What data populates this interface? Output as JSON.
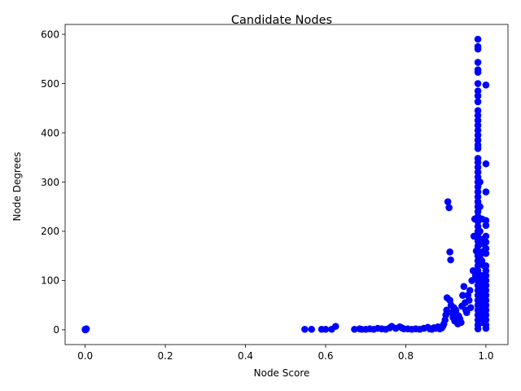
{
  "chart_data": {
    "type": "scatter",
    "title": "Candidate Nodes",
    "xlabel": "Node Score",
    "ylabel": "Node Degrees",
    "xlim": [
      -0.05,
      1.055
    ],
    "ylim": [
      -30,
      620
    ],
    "xticks": [
      0.0,
      0.2,
      0.4,
      0.6,
      0.8,
      1.0
    ],
    "xtick_labels": [
      "0.0",
      "0.2",
      "0.4",
      "0.6",
      "0.8",
      "1.0"
    ],
    "yticks": [
      0,
      100,
      200,
      300,
      400,
      500,
      600
    ],
    "ytick_labels": [
      "0",
      "100",
      "200",
      "300",
      "400",
      "500",
      "600"
    ],
    "grid": false,
    "legend": "none",
    "marker_color": "#0000ff",
    "series": [
      {
        "points": [
          [
            0.0,
            0
          ],
          [
            0.002,
            1
          ],
          [
            0.003,
            2
          ],
          [
            0.001,
            0
          ],
          [
            0.0,
            1
          ],
          [
            0.548,
            1
          ],
          [
            0.565,
            1
          ],
          [
            0.59,
            1
          ],
          [
            0.6,
            1
          ],
          [
            0.615,
            1
          ],
          [
            0.625,
            7
          ],
          [
            0.672,
            1
          ],
          [
            0.685,
            2
          ],
          [
            0.69,
            1
          ],
          [
            0.7,
            1
          ],
          [
            0.71,
            2
          ],
          [
            0.72,
            1
          ],
          [
            0.73,
            3
          ],
          [
            0.74,
            2
          ],
          [
            0.75,
            1
          ],
          [
            0.76,
            4
          ],
          [
            0.765,
            7
          ],
          [
            0.775,
            3
          ],
          [
            0.785,
            6
          ],
          [
            0.79,
            4
          ],
          [
            0.795,
            2
          ],
          [
            0.805,
            2
          ],
          [
            0.815,
            1
          ],
          [
            0.825,
            2
          ],
          [
            0.835,
            1
          ],
          [
            0.845,
            3
          ],
          [
            0.855,
            5
          ],
          [
            0.86,
            2
          ],
          [
            0.865,
            1
          ],
          [
            0.87,
            4
          ],
          [
            0.875,
            3
          ],
          [
            0.88,
            6
          ],
          [
            0.885,
            2
          ],
          [
            0.89,
            4
          ],
          [
            0.893,
            8
          ],
          [
            0.895,
            12
          ],
          [
            0.898,
            20
          ],
          [
            0.9,
            30
          ],
          [
            0.902,
            40
          ],
          [
            0.903,
            65
          ],
          [
            0.905,
            260
          ],
          [
            0.908,
            248
          ],
          [
            0.91,
            158
          ],
          [
            0.912,
            142
          ],
          [
            0.91,
            60
          ],
          [
            0.913,
            50
          ],
          [
            0.915,
            35
          ],
          [
            0.918,
            25
          ],
          [
            0.92,
            45
          ],
          [
            0.922,
            18
          ],
          [
            0.925,
            40
          ],
          [
            0.928,
            30
          ],
          [
            0.93,
            12
          ],
          [
            0.932,
            28
          ],
          [
            0.935,
            22
          ],
          [
            0.938,
            15
          ],
          [
            0.94,
            48
          ],
          [
            0.942,
            70
          ],
          [
            0.945,
            88
          ],
          [
            0.948,
            55
          ],
          [
            0.95,
            40
          ],
          [
            0.952,
            35
          ],
          [
            0.955,
            70
          ],
          [
            0.958,
            60
          ],
          [
            0.96,
            80
          ],
          [
            0.962,
            45
          ],
          [
            0.965,
            100
          ],
          [
            0.968,
            120
          ],
          [
            0.97,
            190
          ],
          [
            0.972,
            225
          ],
          [
            0.974,
            110
          ],
          [
            0.976,
            160
          ],
          [
            0.98,
            590
          ],
          [
            0.98,
            575
          ],
          [
            0.98,
            570
          ],
          [
            0.98,
            543
          ],
          [
            0.98,
            528
          ],
          [
            0.98,
            523
          ],
          [
            0.98,
            500
          ],
          [
            0.98,
            485
          ],
          [
            0.98,
            475
          ],
          [
            0.98,
            463
          ],
          [
            0.98,
            445
          ],
          [
            0.98,
            435
          ],
          [
            0.98,
            425
          ],
          [
            0.98,
            415
          ],
          [
            0.98,
            405
          ],
          [
            0.98,
            395
          ],
          [
            0.98,
            385
          ],
          [
            0.98,
            375
          ],
          [
            0.98,
            368
          ],
          [
            0.98,
            348
          ],
          [
            0.98,
            340
          ],
          [
            0.98,
            330
          ],
          [
            0.98,
            320
          ],
          [
            0.98,
            310
          ],
          [
            0.98,
            300
          ],
          [
            0.98,
            290
          ],
          [
            0.98,
            280
          ],
          [
            0.98,
            270
          ],
          [
            0.98,
            260
          ],
          [
            0.98,
            250
          ],
          [
            0.98,
            240
          ],
          [
            0.98,
            230
          ],
          [
            0.98,
            220
          ],
          [
            0.98,
            210
          ],
          [
            0.98,
            200
          ],
          [
            0.98,
            190
          ],
          [
            0.98,
            180
          ],
          [
            0.98,
            170
          ],
          [
            0.98,
            160
          ],
          [
            0.98,
            150
          ],
          [
            0.98,
            140
          ],
          [
            0.98,
            130
          ],
          [
            0.98,
            120
          ],
          [
            0.98,
            110
          ],
          [
            0.98,
            100
          ],
          [
            0.98,
            90
          ],
          [
            0.98,
            80
          ],
          [
            0.98,
            70
          ],
          [
            0.98,
            60
          ],
          [
            0.98,
            50
          ],
          [
            0.98,
            40
          ],
          [
            0.98,
            30
          ],
          [
            0.98,
            20
          ],
          [
            0.98,
            10
          ],
          [
            0.98,
            2
          ],
          [
            0.985,
            300
          ],
          [
            0.985,
            250
          ],
          [
            0.985,
            200
          ],
          [
            0.985,
            150
          ],
          [
            0.985,
            100
          ],
          [
            0.985,
            60
          ],
          [
            0.985,
            30
          ],
          [
            0.99,
            225
          ],
          [
            0.99,
            175
          ],
          [
            0.99,
            140
          ],
          [
            0.99,
            110
          ],
          [
            0.99,
            90
          ],
          [
            0.99,
            70
          ],
          [
            0.99,
            50
          ],
          [
            0.99,
            30
          ],
          [
            0.99,
            15
          ],
          [
            0.995,
            185
          ],
          [
            0.995,
            160
          ],
          [
            0.995,
            130
          ],
          [
            0.995,
            100
          ],
          [
            0.995,
            80
          ],
          [
            0.995,
            60
          ],
          [
            0.995,
            40
          ],
          [
            0.995,
            20
          ],
          [
            1.0,
            497
          ],
          [
            1.0,
            337
          ],
          [
            1.0,
            280
          ],
          [
            1.0,
            222
          ],
          [
            1.0,
            212
          ],
          [
            1.0,
            190
          ],
          [
            1.0,
            178
          ],
          [
            1.0,
            165
          ],
          [
            1.0,
            155
          ],
          [
            1.0,
            130
          ],
          [
            1.0,
            120
          ],
          [
            1.0,
            110
          ],
          [
            1.0,
            100
          ],
          [
            1.0,
            90
          ],
          [
            1.0,
            80
          ],
          [
            1.0,
            70
          ],
          [
            1.0,
            60
          ],
          [
            1.0,
            50
          ],
          [
            1.0,
            40
          ],
          [
            1.0,
            30
          ],
          [
            1.0,
            20
          ],
          [
            1.0,
            10
          ],
          [
            1.0,
            3
          ]
        ]
      }
    ]
  }
}
